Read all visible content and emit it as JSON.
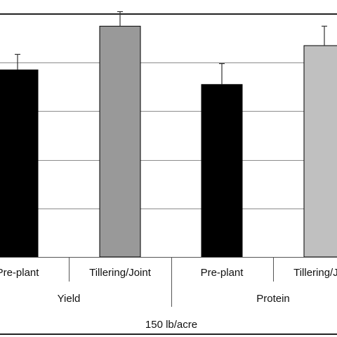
{
  "chart_data": {
    "type": "bar",
    "groups": [
      {
        "label": "Yield",
        "bars": [
          {
            "category": "Pre-plant",
            "value": 38.5,
            "error": 3.2,
            "color": "#000000"
          },
          {
            "category": "Tillering/Joint",
            "value": 47.5,
            "error": 3.0,
            "color": "#999999"
          }
        ]
      },
      {
        "label": "Protein",
        "bars": [
          {
            "category": "Pre-plant",
            "value": 35.5,
            "error": 4.3,
            "color": "#000000"
          },
          {
            "category": "Tillering/Joint",
            "value": 43.5,
            "error": 4.0,
            "color": "#c0c0c0"
          }
        ]
      }
    ],
    "group_axis_label": "150 lb/acre",
    "gridlines": true,
    "ylim": [
      0,
      50
    ]
  }
}
